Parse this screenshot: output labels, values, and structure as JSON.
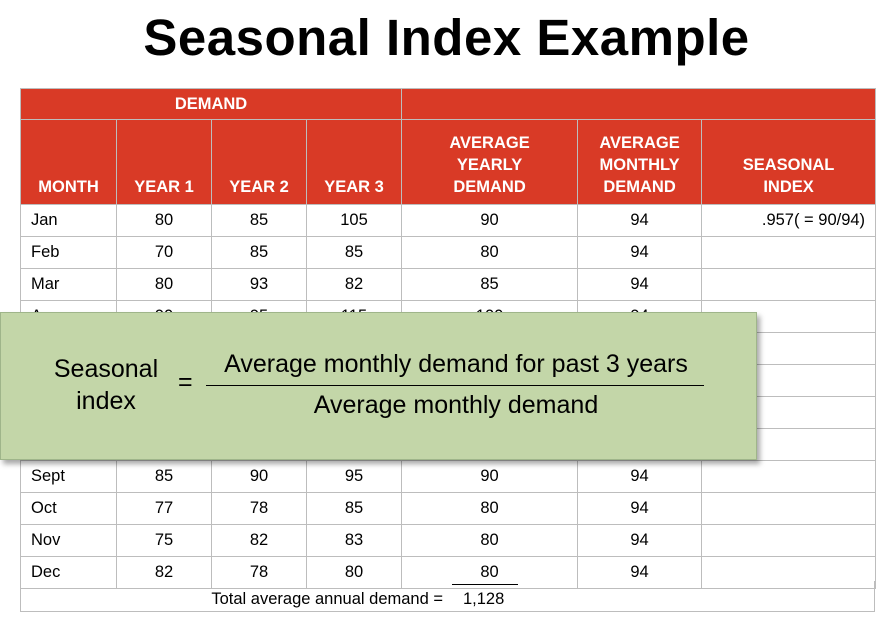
{
  "title": "Seasonal Index Example",
  "headers": {
    "demand_group": "DEMAND",
    "month": "MONTH",
    "year1": "YEAR 1",
    "year2": "YEAR 2",
    "year3": "YEAR 3",
    "avg_yearly": [
      "AVERAGE",
      "YEARLY",
      "DEMAND"
    ],
    "avg_monthly": [
      "AVERAGE",
      "MONTHLY",
      "DEMAND"
    ],
    "seasonal_index": [
      "SEASONAL",
      "INDEX"
    ]
  },
  "rows": [
    {
      "month": "Jan",
      "y1": "80",
      "y2": "85",
      "y3": "105",
      "avg_yearly": "90",
      "avg_monthly": "94",
      "si": ".957( = 90/94)"
    },
    {
      "month": "Feb",
      "y1": "70",
      "y2": "85",
      "y3": "85",
      "avg_yearly": "80",
      "avg_monthly": "94",
      "si": ""
    },
    {
      "month": "Mar",
      "y1": "80",
      "y2": "93",
      "y3": "82",
      "avg_yearly": "85",
      "avg_monthly": "94",
      "si": ""
    },
    {
      "month": "Apr",
      "y1": "90",
      "y2": "95",
      "y3": "115",
      "avg_yearly": "100",
      "avg_monthly": "94",
      "si": ""
    },
    {
      "month": "",
      "y1": "",
      "y2": "",
      "y3": "",
      "avg_yearly": "",
      "avg_monthly": "",
      "si": ""
    },
    {
      "month": "",
      "y1": "",
      "y2": "",
      "y3": "",
      "avg_yearly": "",
      "avg_monthly": "",
      "si": ""
    },
    {
      "month": "",
      "y1": "",
      "y2": "",
      "y3": "",
      "avg_yearly": "",
      "avg_monthly": "",
      "si": ""
    },
    {
      "month": "",
      "y1": "",
      "y2": "",
      "y3": "",
      "avg_yearly": "",
      "avg_monthly": "",
      "si": ""
    },
    {
      "month": "Sept",
      "y1": "85",
      "y2": "90",
      "y3": "95",
      "avg_yearly": "90",
      "avg_monthly": "94",
      "si": ""
    },
    {
      "month": "Oct",
      "y1": "77",
      "y2": "78",
      "y3": "85",
      "avg_yearly": "80",
      "avg_monthly": "94",
      "si": ""
    },
    {
      "month": "Nov",
      "y1": "75",
      "y2": "82",
      "y3": "83",
      "avg_yearly": "80",
      "avg_monthly": "94",
      "si": ""
    },
    {
      "month": "Dec",
      "y1": "82",
      "y2": "78",
      "y3": "80",
      "avg_yearly": "80",
      "avg_monthly": "94",
      "si": ""
    }
  ],
  "total": {
    "label": "Total average annual demand =",
    "value": "1,128"
  },
  "formula": {
    "lhs": [
      "Seasonal",
      "index"
    ],
    "equals": "=",
    "numerator": "Average monthly demand for past 3 years",
    "denominator": "Average monthly demand"
  },
  "colors": {
    "header_bg": "#d93a26",
    "overlay_bg": "#c3d6a8"
  }
}
